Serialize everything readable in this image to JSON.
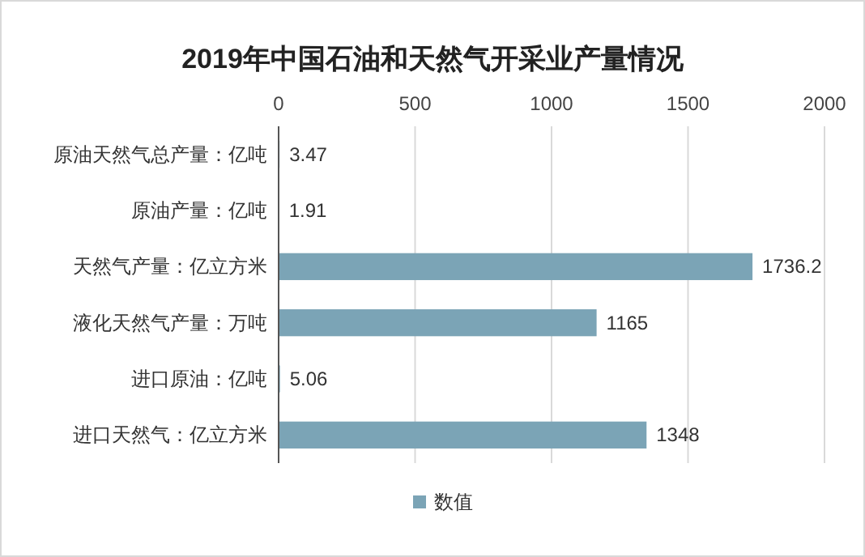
{
  "chart_data": {
    "type": "bar",
    "orientation": "horizontal",
    "title": "2019年中国石油和天然气开采业产量情况",
    "categories": [
      "原油天然气总产量：亿吨",
      "原油产量：亿吨",
      "天然气产量：亿立方米",
      "液化天然气产量：万吨",
      "进口原油：亿吨",
      "进口天然气：亿立方米"
    ],
    "series": [
      {
        "name": "数值",
        "color": "#7ba4b6",
        "values": [
          3.47,
          1.91,
          1736.2,
          1165,
          5.06,
          1348
        ]
      }
    ],
    "xlim": [
      0,
      2000
    ],
    "xticks": [
      0,
      500,
      1000,
      1500,
      2000
    ],
    "grid": "x",
    "legend": "bottom",
    "data_labels": true
  }
}
